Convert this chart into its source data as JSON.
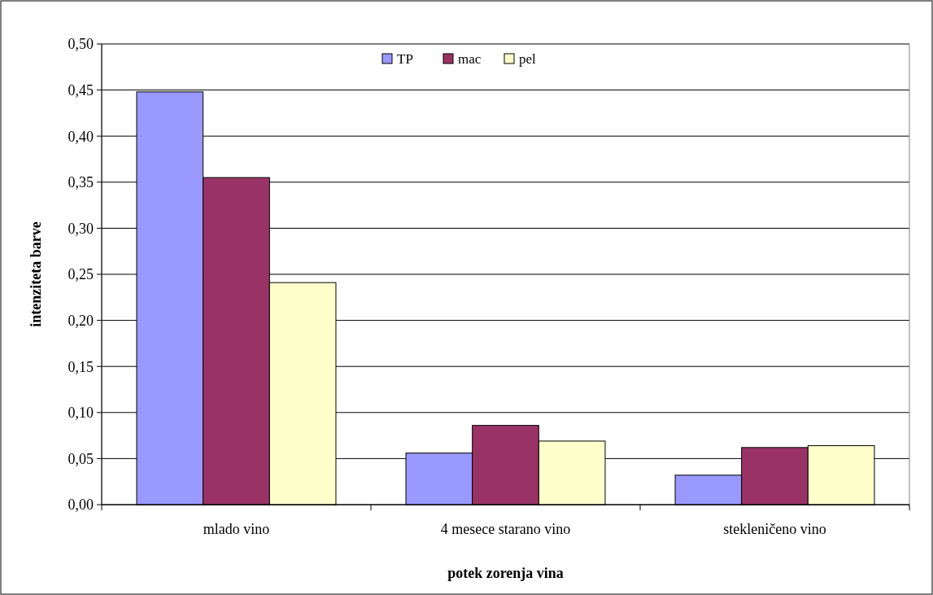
{
  "chart_data": {
    "type": "bar",
    "xlabel": "potek zorenja vina",
    "ylabel": "intenziteta barve",
    "categories": [
      "mlado vino",
      "4 mesece starano vino",
      "stekleničeno vino"
    ],
    "series": [
      {
        "name": "TP",
        "color": "#9999ff",
        "values": [
          0.448,
          0.056,
          0.032
        ]
      },
      {
        "name": "mac",
        "color": "#993366",
        "values": [
          0.355,
          0.086,
          0.062
        ]
      },
      {
        "name": "pel",
        "color": "#ffffcc",
        "values": [
          0.241,
          0.069,
          0.064
        ]
      }
    ],
    "ylim": [
      0,
      0.5
    ],
    "yticks": [
      {
        "value": 0,
        "label": "0,00"
      },
      {
        "value": 0.05,
        "label": "0,05"
      },
      {
        "value": 0.1,
        "label": "0,10"
      },
      {
        "value": 0.15,
        "label": "0,15"
      },
      {
        "value": 0.2,
        "label": "0,20"
      },
      {
        "value": 0.25,
        "label": "0,25"
      },
      {
        "value": 0.3,
        "label": "0,30"
      },
      {
        "value": 0.35,
        "label": "0,35"
      },
      {
        "value": 0.4,
        "label": "0,40"
      },
      {
        "value": 0.45,
        "label": "0,45"
      },
      {
        "value": 0.5,
        "label": "0,50"
      }
    ],
    "grid": "y",
    "legend": "top"
  }
}
